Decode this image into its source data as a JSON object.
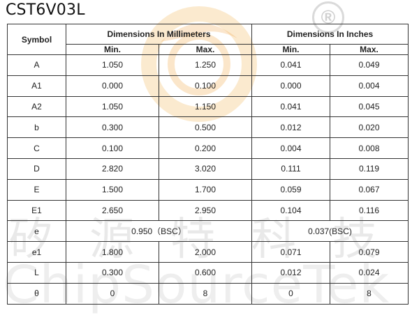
{
  "title": "CST6V03L",
  "watermark": {
    "registered_mark": "®",
    "chinese_text": "矽源特科技",
    "english_text": "ChipSourceTek"
  },
  "table": {
    "headers": {
      "symbol": "Symbol",
      "mm_group": "Dimensions In Millimeters",
      "in_group": "Dimensions In Inches",
      "mm_min": "Min.",
      "mm_max": "Max.",
      "in_min": "Min.",
      "in_max": "Max."
    },
    "rows": [
      {
        "symbol": "A",
        "mm_min": "1.050",
        "mm_max": "1.250",
        "in_min": "0.041",
        "in_max": "0.049"
      },
      {
        "symbol": "A1",
        "mm_min": "0.000",
        "mm_max": "0.100",
        "in_min": "0.000",
        "in_max": "0.004"
      },
      {
        "symbol": "A2",
        "mm_min": "1.050",
        "mm_max": "1.150",
        "in_min": "0.041",
        "in_max": "0.045"
      },
      {
        "symbol": "b",
        "mm_min": "0.300",
        "mm_max": "0.500",
        "in_min": "0.012",
        "in_max": "0.020"
      },
      {
        "symbol": "C",
        "mm_min": "0.100",
        "mm_max": "0.200",
        "in_min": "0.004",
        "in_max": "0.008"
      },
      {
        "symbol": "D",
        "mm_min": "2.820",
        "mm_max": "3.020",
        "in_min": "0.111",
        "in_max": "0.119"
      },
      {
        "symbol": "E",
        "mm_min": "1.500",
        "mm_max": "1.700",
        "in_min": "0.059",
        "in_max": "0.067"
      },
      {
        "symbol": "E1",
        "mm_min": "2.650",
        "mm_max": "2.950",
        "in_min": "0.104",
        "in_max": "0.116"
      },
      {
        "symbol": "e",
        "mm_span": "0.950（BSC）",
        "in_span": "0.037(BSC)"
      },
      {
        "symbol": "e1",
        "mm_min": "1.800",
        "mm_max": "2.000",
        "in_min": "0.071",
        "in_max": "0.079"
      },
      {
        "symbol": "L",
        "mm_min": "0.300",
        "mm_max": "0.600",
        "in_min": "0.012",
        "in_max": "0.024"
      },
      {
        "symbol": "θ",
        "mm_min": "0",
        "mm_max": "8",
        "in_min": "0",
        "in_max": "8"
      }
    ]
  },
  "colors": {
    "watermark_orange": "#f6c27a",
    "watermark_gray": "#bdbdbd",
    "grid_line": "#333333"
  }
}
